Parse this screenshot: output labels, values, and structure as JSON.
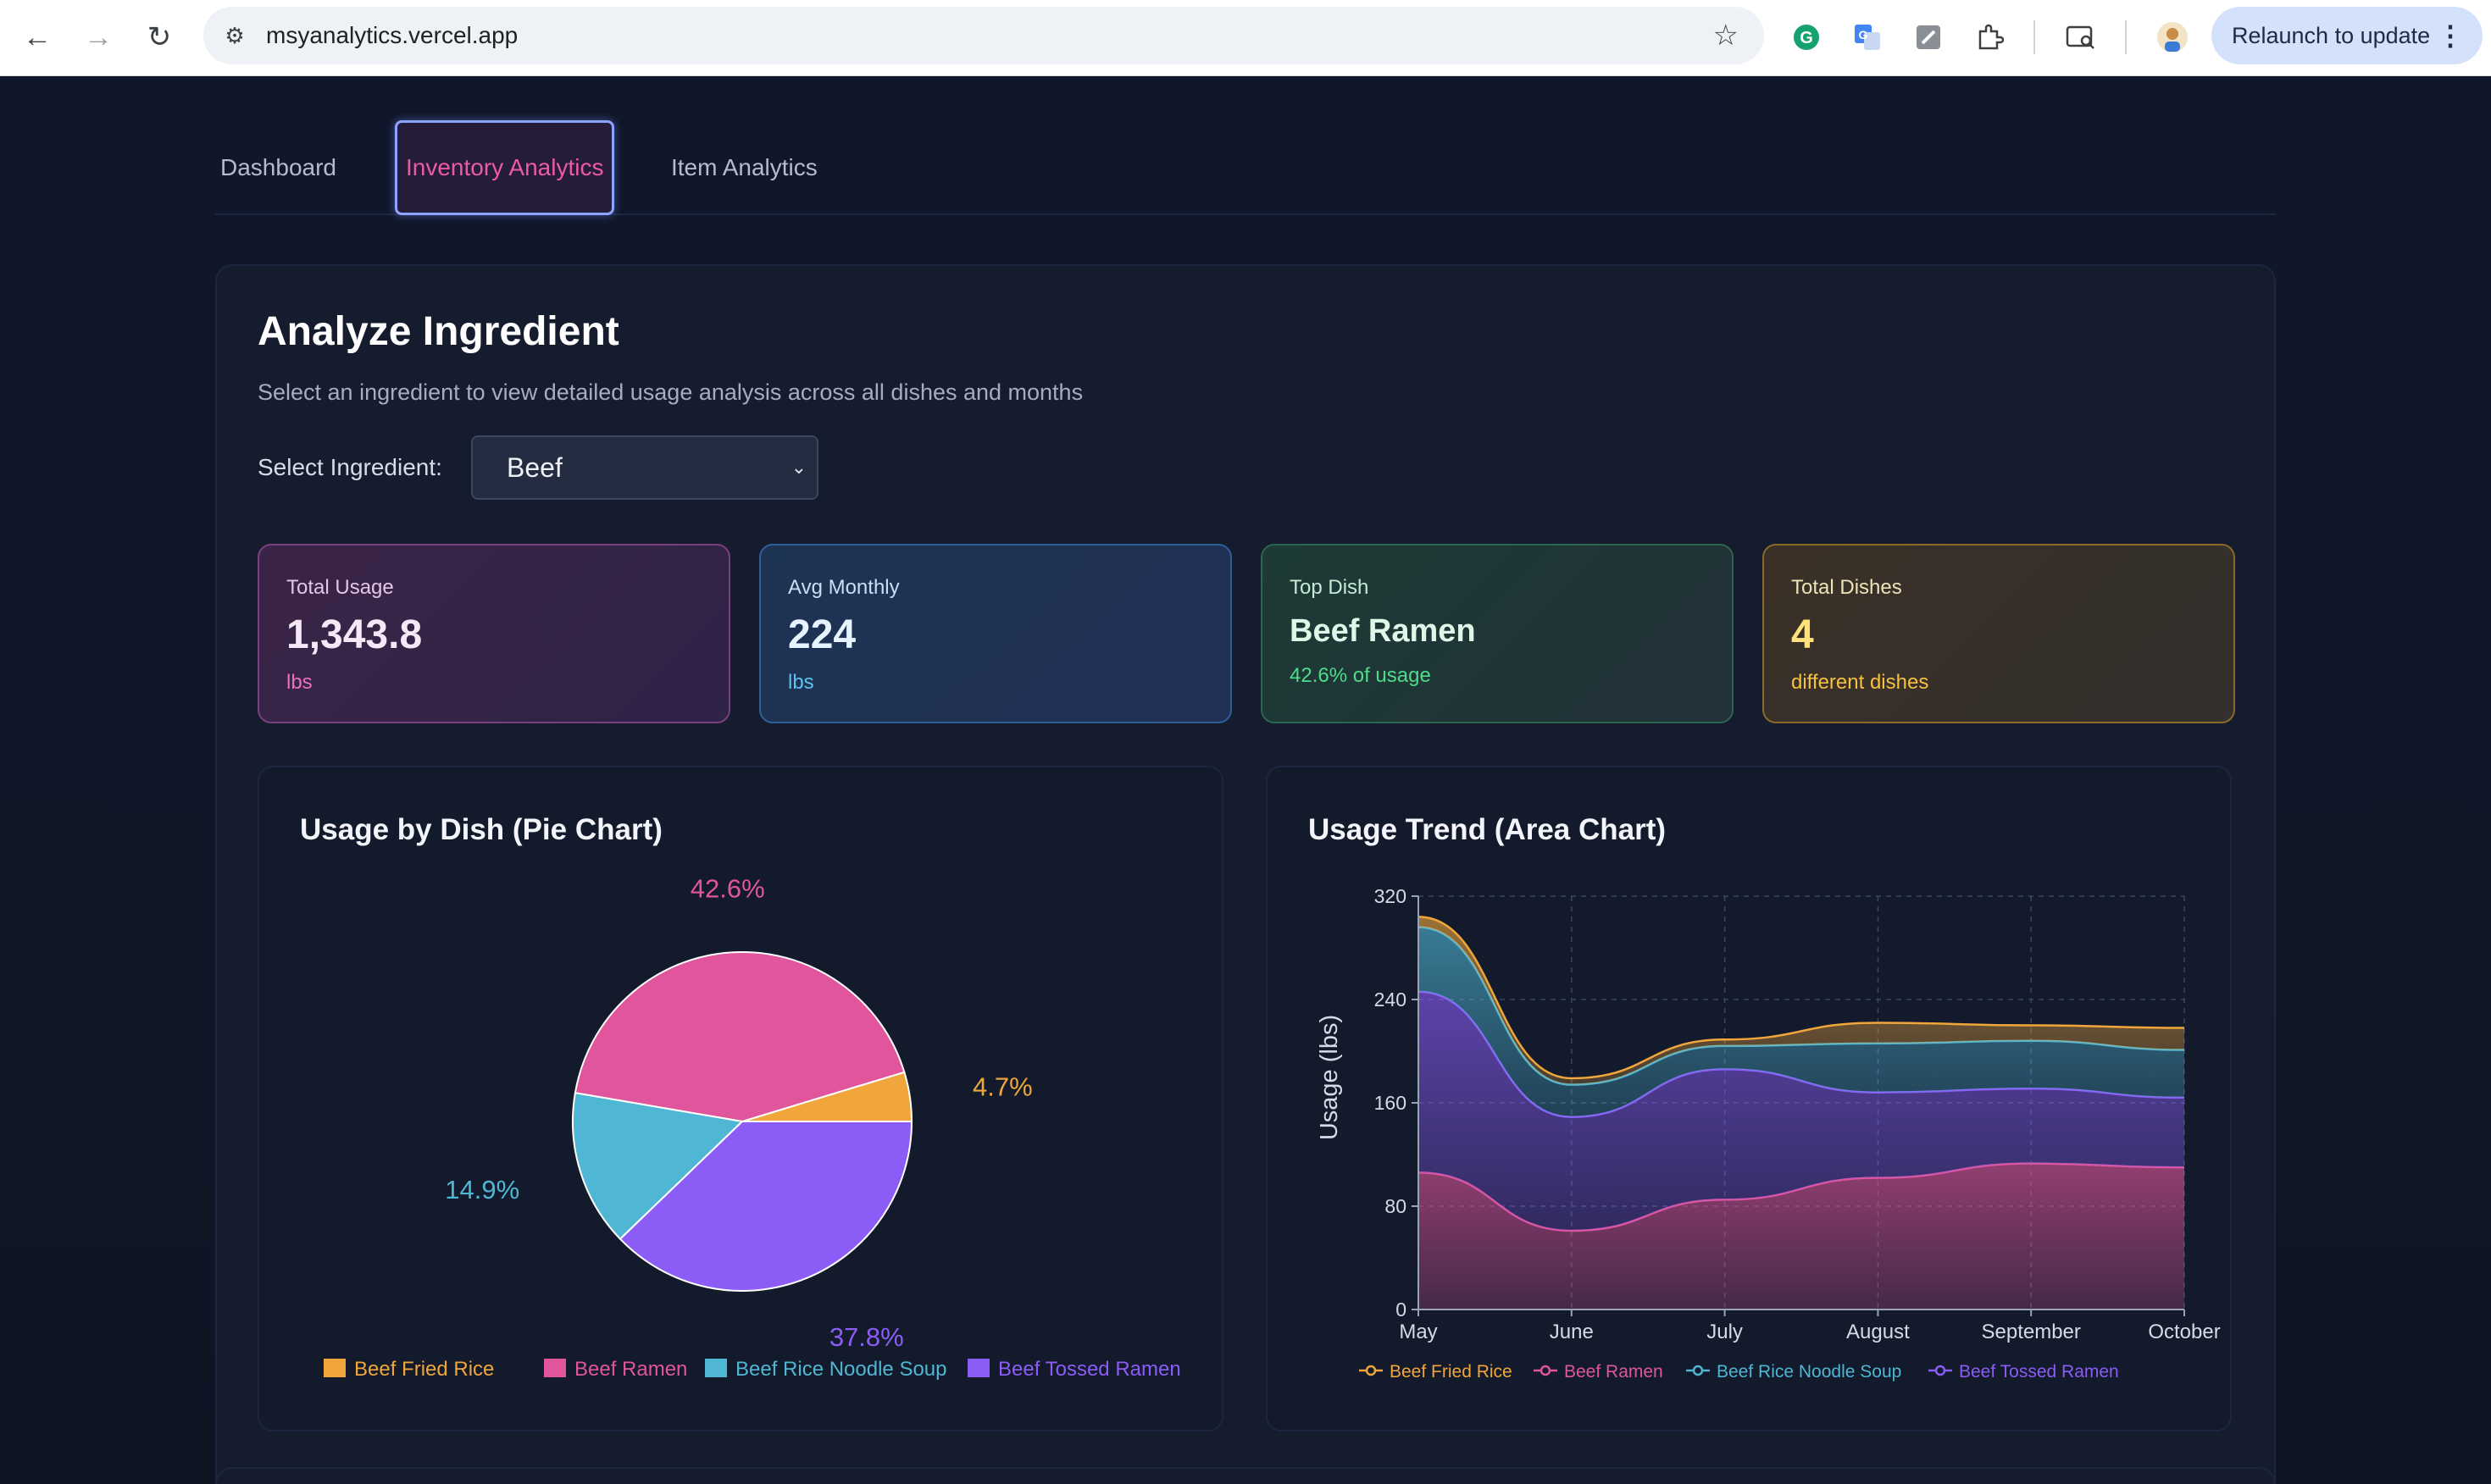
{
  "browser": {
    "url": "msyanalytics.vercel.app",
    "relaunch_label": "Relaunch to update"
  },
  "tabs": [
    {
      "label": "Dashboard",
      "active": false
    },
    {
      "label": "Inventory Analytics",
      "active": true
    },
    {
      "label": "Item Analytics",
      "active": false
    }
  ],
  "analyze": {
    "title": "Analyze Ingredient",
    "subtitle": "Select an ingredient to view detailed usage analysis across all dishes and months",
    "select_label": "Select Ingredient:",
    "select_value": "Beef"
  },
  "stats": {
    "total_usage": {
      "label": "Total Usage",
      "value": "1,343.8",
      "unit": "lbs"
    },
    "avg_monthly": {
      "label": "Avg Monthly",
      "value": "224",
      "unit": "lbs"
    },
    "top_dish": {
      "label": "Top Dish",
      "value": "Beef Ramen",
      "unit": "42.6% of usage"
    },
    "total_dishes": {
      "label": "Total Dishes",
      "value": "4",
      "unit": "different dishes"
    }
  },
  "colors": {
    "fried_rice": "#f0a63a",
    "ramen": "#e0559b",
    "noodle_soup": "#4fb6d4",
    "tossed_ramen": "#8b5cf6"
  },
  "chart_data": [
    {
      "type": "pie",
      "title": "Usage by Dish (Pie Chart)",
      "legend_position": "bottom",
      "slices": [
        {
          "name": "Beef Fried Rice",
          "value": 4.7,
          "label": "4.7%",
          "color": "#f0a63a"
        },
        {
          "name": "Beef Ramen",
          "value": 42.6,
          "label": "42.6%",
          "color": "#e0559b"
        },
        {
          "name": "Beef Rice Noodle Soup",
          "value": 14.9,
          "label": "14.9%",
          "color": "#4fb6d4"
        },
        {
          "name": "Beef Tossed Ramen",
          "value": 37.8,
          "label": "37.8%",
          "color": "#8b5cf6"
        }
      ]
    },
    {
      "type": "area",
      "stacked": true,
      "title": "Usage Trend (Area Chart)",
      "ylabel": "Usage (lbs)",
      "ylim": [
        0,
        320
      ],
      "yticks": [
        0,
        80,
        160,
        240,
        320
      ],
      "categories": [
        "May",
        "June",
        "July",
        "August",
        "September",
        "October"
      ],
      "grid": true,
      "legend_position": "bottom",
      "series": [
        {
          "name": "Beef Ramen",
          "color": "#e0559b",
          "values": [
            106,
            61,
            85,
            102,
            113,
            110
          ]
        },
        {
          "name": "Beef Tossed Ramen",
          "color": "#8b5cf6",
          "values": [
            140,
            88,
            101,
            66,
            58,
            54
          ]
        },
        {
          "name": "Beef Rice Noodle Soup",
          "color": "#4fb6d4",
          "values": [
            50,
            25,
            18,
            38,
            37,
            37
          ]
        },
        {
          "name": "Beef Fried Rice",
          "color": "#f0a63a",
          "values": [
            8,
            5,
            5,
            16,
            12,
            17
          ]
        }
      ],
      "legend_order": [
        "Beef Fried Rice",
        "Beef Ramen",
        "Beef Rice Noodle Soup",
        "Beef Tossed Ramen"
      ]
    }
  ]
}
